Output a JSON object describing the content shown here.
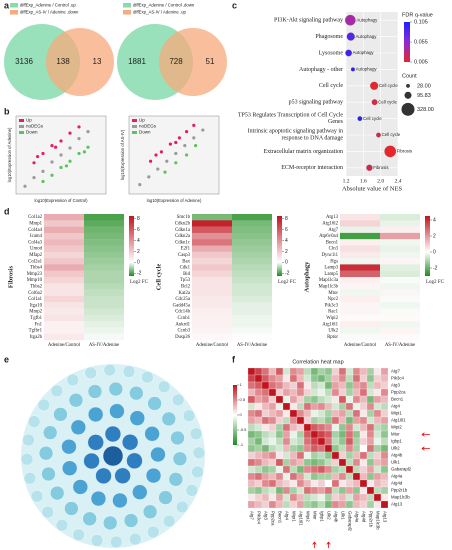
{
  "panel_labels": [
    "a",
    "b",
    "c",
    "d",
    "e",
    "f"
  ],
  "chart_data": [
    {
      "type": "venn",
      "sets": [
        {
          "name": "diffExp_Adenine / Control .up",
          "color": "#86dcae"
        },
        {
          "name": "diffExp_AS-IV / Adenine .down",
          "color": "#f7aa7c"
        }
      ],
      "values": [
        3136,
        138,
        13
      ]
    },
    {
      "type": "venn",
      "sets": [
        {
          "name": "diffExp_Adenine / Control .down",
          "color": "#86dcae"
        },
        {
          "name": "diffExp_AS-IV / Adenine .up",
          "color": "#f7aa7c"
        }
      ],
      "values": [
        1881,
        728,
        51
      ]
    },
    {
      "type": "scatter",
      "xlabel": "log10(Expression of Control)",
      "ylabel": "log10(Expression of Adenine)",
      "xlim": [
        0,
        5
      ],
      "ylim": [
        0,
        5
      ],
      "series": [
        {
          "name": "Up",
          "color": "#e4205a",
          "x": [
            1,
            1.5,
            2,
            2.5,
            3,
            3.5,
            1.2,
            2.2
          ],
          "values": [
            2,
            2.6,
            3.1,
            3.4,
            3.9,
            4.3,
            2.4,
            3.0
          ]
        },
        {
          "name": "noDEGs",
          "color": "#9a9a9a",
          "x": [
            0.5,
            1,
            1.5,
            2,
            2.5,
            3,
            3.5,
            4
          ],
          "values": [
            0.5,
            1.05,
            1.45,
            2.05,
            2.5,
            2.95,
            3.55,
            4
          ]
        },
        {
          "name": "Down",
          "color": "#5cc45c",
          "x": [
            1.5,
            2,
            2.5,
            3,
            3.5,
            4,
            2.8,
            3.8
          ],
          "values": [
            0.8,
            1.2,
            1.7,
            2.1,
            2.6,
            3.0,
            1.8,
            2.7
          ]
        }
      ]
    },
    {
      "type": "scatter",
      "xlabel": "log10(Expression of Adenine)",
      "ylabel": "log10(Expression of AS-IV)",
      "xlim": [
        0,
        5
      ],
      "ylim": [
        0,
        5
      ],
      "series": [
        {
          "name": "Up",
          "color": "#e4205a",
          "x": [
            1.2,
            1.8,
            2.3,
            2.8,
            3.2,
            3.6,
            1.5,
            2.6
          ],
          "values": [
            2.1,
            2.7,
            3.2,
            3.6,
            4.0,
            4.4,
            2.5,
            3.3
          ]
        },
        {
          "name": "noDEGs",
          "color": "#9a9a9a",
          "x": [
            0.6,
            1.1,
            1.6,
            2.1,
            2.6,
            3.1,
            3.6,
            4.1
          ],
          "values": [
            0.6,
            1.1,
            1.6,
            2.1,
            2.6,
            3.1,
            3.6,
            4.1
          ]
        },
        {
          "name": "Down",
          "color": "#5cc45c",
          "x": [
            2,
            2.6,
            3.2,
            3.7
          ],
          "values": [
            1.4,
            2.0,
            2.5,
            3.1
          ]
        }
      ]
    },
    {
      "type": "bubble",
      "xlabel": "Absolute value of NES",
      "xlim": [
        1.2,
        2.4
      ],
      "xticks": [
        1.2,
        1.6,
        {
          "value": 2,
          "label": "2.0"
        },
        2.4
      ],
      "categories": [
        "PI3K-Akt signaling pathway",
        "Phagosome",
        "Lysosome",
        "Autophagy - other",
        "Cell cycle",
        "p53 signaling pathway",
        "TP53 Regulates Transcription of Cell Cycle Genes",
        "Intrinsic apoptotic signaling pathway in response to DNA damage",
        "Extracellular matrix organization",
        "ECM-receptor interaction"
      ],
      "values": [
        1.3,
        1.31,
        1.26,
        1.36,
        1.85,
        1.86,
        1.52,
        1.95,
        2.22,
        1.74
      ],
      "fdr": [
        0.04,
        0.08,
        0.09,
        0.1,
        0.005,
        0.012,
        0.1,
        0.012,
        0.005,
        0.015
      ],
      "count": [
        210,
        120,
        80,
        28,
        120,
        60,
        40,
        40,
        250,
        70
      ],
      "point_labels": [
        "Autophagy",
        "Autophagy",
        "Autophagy",
        "Autophagy",
        "Cell cycle",
        "Cell cycle",
        "Cell cycle",
        "Cell cycle",
        "Fibrosis",
        "Fibrosis"
      ],
      "fdr_title": "FDR q-value",
      "fdr_lim": [
        0.005,
        0.105
      ],
      "fdr_ticks": [
        0.105,
        0.055,
        0.005
      ],
      "fdr_colors": [
        "#e8262a",
        "#8a2bd8",
        "#1f1fff"
      ],
      "count_title": "Count",
      "count_ticks": [
        {
          "value": 28,
          "label": "28.00"
        },
        {
          "value": 95.83,
          "label": "95.83"
        },
        {
          "value": 328,
          "label": "328.00"
        }
      ]
    },
    {
      "type": "heatmap",
      "title": "Fibrosis",
      "columns": [
        "Adenine/Control",
        "AS-IV/Adenine"
      ],
      "legend_label": "Log2 FC",
      "clim": [
        -2.5,
        8.5
      ],
      "ticks": [
        8,
        6,
        4,
        2,
        0,
        -2
      ],
      "colors": [
        "#1e8b1e",
        "#ffffff",
        "#c0141e"
      ],
      "rows": [
        "Col1a2",
        "Mmp1",
        "Col4a4",
        "Icam4",
        "Col4a3",
        "Umod",
        "Mfap2",
        "Col2a1",
        "Thbs4",
        "Mmp23",
        "Mmp10",
        "Thbs2",
        "Col6a2",
        "Col1a1",
        "Itga10",
        "Mmp2",
        "Tgfb1",
        "Fn1",
        "Tgfbr1",
        "Itga2b"
      ],
      "values": [
        [
          3,
          -2
        ],
        [
          2,
          -1.8
        ],
        [
          3,
          -1.6
        ],
        [
          2,
          -1.5
        ],
        [
          2.5,
          -1.4
        ],
        [
          2,
          -1.3
        ],
        [
          1.5,
          -1.2
        ],
        [
          2,
          -1.1
        ],
        [
          3,
          -1
        ],
        [
          2,
          -0.9
        ],
        [
          1.5,
          -0.9
        ],
        [
          1,
          -0.8
        ],
        [
          1,
          -0.7
        ],
        [
          1.5,
          -0.6
        ],
        [
          1,
          -0.6
        ],
        [
          0.8,
          -0.5
        ],
        [
          1,
          -0.4
        ],
        [
          0.5,
          -0.3
        ],
        [
          0.5,
          -0.2
        ],
        [
          0.8,
          -0.1
        ]
      ]
    },
    {
      "type": "heatmap",
      "title": "Cell cycle",
      "columns": [
        "Adenine/Control",
        "AS-IV/Adenine"
      ],
      "legend_label": "Log2 FC",
      "clim": [
        -2.5,
        8.5
      ],
      "ticks": [
        8,
        6,
        4,
        2,
        0,
        -2
      ],
      "colors": [
        "#1e8b1e",
        "#ffffff",
        "#c0141e"
      ],
      "rows": [
        "Smc1b",
        "Cdkn2b",
        "Cdkn1a",
        "Cdkn2a",
        "Cdkn1c",
        "E2f1",
        "Casp3",
        "Bax",
        "Cdk1",
        "Bid",
        "Tp53",
        "Bcl2",
        "Kat2a",
        "Cdc25a",
        "Gadd45a",
        "Cdc14b",
        "Ccnb1",
        "Ankrd1",
        "Ccnb3",
        "Dusp26"
      ],
      "values": [
        [
          -1.5,
          -2
        ],
        [
          8,
          -1.5
        ],
        [
          6,
          -1.4
        ],
        [
          4,
          -1.3
        ],
        [
          5,
          -1.2
        ],
        [
          3,
          -1.1
        ],
        [
          2,
          -1
        ],
        [
          1.5,
          -0.9
        ],
        [
          2,
          -0.8
        ],
        [
          1.5,
          -0.7
        ],
        [
          1,
          -0.6
        ],
        [
          1,
          -0.5
        ],
        [
          1,
          -0.5
        ],
        [
          0.8,
          -0.4
        ],
        [
          0.8,
          -0.3
        ],
        [
          0.6,
          -0.3
        ],
        [
          0.5,
          -0.2
        ],
        [
          0.5,
          -0.2
        ],
        [
          0.4,
          -0.1
        ],
        [
          0.3,
          0.1
        ]
      ]
    },
    {
      "type": "heatmap",
      "title": "Autophagy",
      "columns": [
        "Adenine/Control",
        "AS-IV/Adenine"
      ],
      "legend_label": "Log2 FC",
      "clim": [
        -3,
        4.5
      ],
      "ticks": [
        4,
        2,
        0,
        -2
      ],
      "colors": [
        "#1e8b1e",
        "#ffffff",
        "#c0141e"
      ],
      "rows": [
        "Atg13",
        "Atg16l2",
        "Atg7",
        "Atp6v0a4",
        "Becn1",
        "Cln3",
        "Dync1i1",
        "Hgs",
        "Lamp3",
        "Lamp5",
        "Map1lc3a",
        "Map1lc3b",
        "Mtor",
        "Npc2",
        "Pik3c3",
        "Rac1",
        "Wipi2",
        "Atg16l1",
        "Ulk2",
        "Rptor"
      ],
      "values": [
        [
          0.5,
          -0.5
        ],
        [
          0.8,
          -0.3
        ],
        [
          -0.3,
          0.3
        ],
        [
          -2.5,
          1.8
        ],
        [
          0.3,
          -0.2
        ],
        [
          0.6,
          -0.3
        ],
        [
          0.4,
          -0.2
        ],
        [
          -0.2,
          0.2
        ],
        [
          4,
          -0.4
        ],
        [
          3,
          -0.5
        ],
        [
          0.3,
          -0.1
        ],
        [
          0.2,
          -0.2
        ],
        [
          -0.2,
          0.2
        ],
        [
          0.3,
          -0.1
        ],
        [
          0.2,
          -0.2
        ],
        [
          0.2,
          -0.1
        ],
        [
          0.1,
          0.1
        ],
        [
          0.3,
          -0.2
        ],
        [
          -0.2,
          0.2
        ],
        [
          -0.1,
          0.1
        ]
      ]
    },
    {
      "type": "correlation",
      "title": "Correlation heat map",
      "clim": [
        -1,
        1
      ],
      "ticks": [
        1,
        0.5,
        0,
        -0.5,
        -1
      ],
      "colors": [
        "#1e8b1e",
        "#ffffff",
        "#c0141e"
      ],
      "labels": [
        "Atg7",
        "Pik3c4",
        "Atg3",
        "Ppp2ca",
        "Becn1",
        "Atg4",
        "Wipi1",
        "Atg16l1",
        "Wipi2",
        "Mtor",
        "Igbp1",
        "Ulk2",
        "Atg4b",
        "Ulk1",
        "Gabarapl2",
        "Atg4a",
        "Atg4d",
        "Ppp2r1b",
        "Map1lc3b",
        "Atg13"
      ],
      "matrix": [
        [
          1
        ],
        [
          0.8,
          1
        ],
        [
          0.6,
          0.7,
          1
        ],
        [
          0.3,
          0.5,
          0.6,
          1
        ],
        [
          0.7,
          0.4,
          0.5,
          0.2,
          1
        ],
        [
          -0.2,
          0.1,
          0.3,
          0.4,
          -0.1,
          1
        ],
        [
          0.5,
          0.6,
          0.2,
          0.3,
          0.4,
          0.1,
          1
        ],
        [
          0.4,
          0.3,
          0.6,
          0.5,
          0.2,
          -0.3,
          0.5,
          1
        ],
        [
          -0.3,
          -0.2,
          0.1,
          0.2,
          -0.4,
          0.6,
          0.3,
          0.2,
          1
        ],
        [
          -0.6,
          -0.5,
          -0.3,
          -0.2,
          -0.5,
          0.4,
          -0.1,
          -0.4,
          0.7,
          1
        ],
        [
          -0.4,
          -0.6,
          -0.2,
          -0.1,
          -0.3,
          0.5,
          -0.2,
          -0.3,
          0.6,
          0.8,
          1
        ],
        [
          -0.5,
          -0.4,
          -0.6,
          -0.3,
          -0.2,
          0.3,
          -0.4,
          -0.5,
          0.5,
          0.7,
          0.6,
          1
        ],
        [
          0.2,
          0.3,
          0.4,
          0.5,
          0.1,
          -0.2,
          0.3,
          0.6,
          -0.1,
          -0.4,
          -0.3,
          -0.5,
          1
        ],
        [
          0.6,
          0.5,
          0.3,
          0.2,
          0.7,
          -0.4,
          0.4,
          0.3,
          -0.5,
          -0.6,
          -0.5,
          -0.3,
          0.2,
          1
        ],
        [
          -0.2,
          -0.3,
          -0.5,
          -0.4,
          -0.1,
          0.6,
          -0.3,
          -0.6,
          0.5,
          0.6,
          0.7,
          0.5,
          -0.4,
          -0.3,
          1
        ],
        [
          0.5,
          0.6,
          0.4,
          0.3,
          0.5,
          -0.1,
          0.6,
          0.4,
          -0.2,
          -0.5,
          -0.4,
          -0.4,
          0.3,
          0.5,
          -0.3,
          1
        ],
        [
          0.3,
          0.2,
          0.5,
          0.6,
          0.3,
          0.2,
          0.1,
          0.5,
          0.3,
          0.1,
          0.2,
          0,
          0.6,
          0.1,
          0.2,
          0.3,
          1
        ],
        [
          -0.4,
          -0.5,
          -0.3,
          -0.2,
          -0.6,
          0.5,
          -0.4,
          -0.2,
          0.6,
          0.5,
          0.4,
          0.6,
          -0.3,
          -0.5,
          0.4,
          -0.5,
          0.1,
          1
        ],
        [
          0.1,
          0.2,
          0.3,
          0.1,
          0.4,
          -0.2,
          0.5,
          0.3,
          -0.3,
          -0.2,
          -0.1,
          -0.4,
          0.2,
          0.3,
          -0.2,
          0.4,
          0.3,
          -0.3,
          1
        ],
        [
          0.4,
          0.3,
          0.2,
          0.5,
          0.3,
          -0.3,
          0.2,
          0.4,
          -0.4,
          -0.5,
          -0.3,
          -0.6,
          0.5,
          0.4,
          -0.5,
          0.3,
          0.2,
          -0.4,
          0.1,
          1
        ]
      ]
    }
  ]
}
